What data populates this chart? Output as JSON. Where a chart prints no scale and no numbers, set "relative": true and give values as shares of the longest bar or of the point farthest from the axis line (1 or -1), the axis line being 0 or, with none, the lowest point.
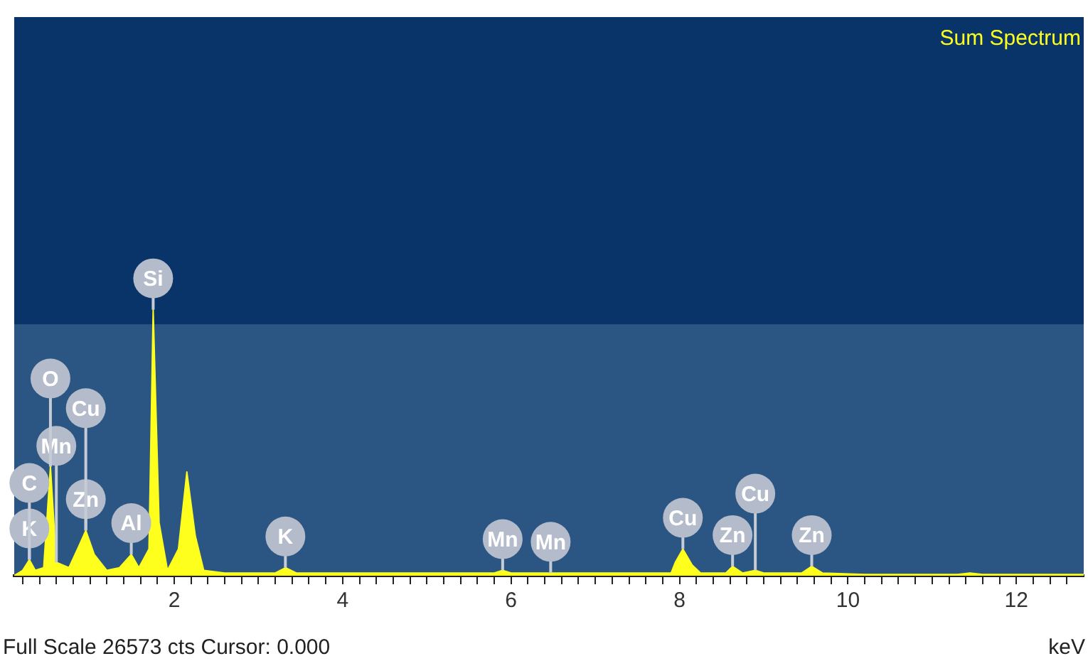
{
  "chart_data": {
    "type": "area",
    "title": "Sum Spectrum",
    "xlabel": "keV",
    "relative": true,
    "color": "#ffff1e",
    "grid": false,
    "legend": false,
    "tick_labels": "x",
    "x": [
      0.1,
      0.2,
      0.28,
      0.35,
      0.45,
      0.53,
      0.6,
      0.75,
      0.88,
      0.95,
      1.05,
      1.2,
      1.35,
      1.49,
      1.58,
      1.7,
      1.75,
      1.82,
      1.92,
      2.05,
      2.15,
      2.25,
      2.35,
      2.6,
      3.2,
      3.32,
      3.45,
      5.8,
      5.9,
      6.0,
      6.47,
      7.9,
      7.95,
      8.04,
      8.15,
      8.25,
      8.55,
      8.63,
      8.75,
      8.9,
      9.0,
      9.45,
      9.57,
      9.7,
      10.2,
      11.3,
      11.45,
      11.6,
      12.8
    ],
    "values": [
      0,
      0.02,
      0.06,
      0.02,
      0.03,
      0.41,
      0.05,
      0.03,
      0.12,
      0.17,
      0.08,
      0.02,
      0.03,
      0.08,
      0.03,
      0.1,
      1,
      0.2,
      0.02,
      0.1,
      0.39,
      0.15,
      0.02,
      0.01,
      0.01,
      0.03,
      0.01,
      0.01,
      0.02,
      0.01,
      0.01,
      0.01,
      0.05,
      0.1,
      0.04,
      0.01,
      0.01,
      0.035,
      0.01,
      0.02,
      0.01,
      0.01,
      0.035,
      0.01,
      0.005,
      0.005,
      0.01,
      0.005,
      0.005
    ],
    "xlim": [
      0.1,
      12.8
    ],
    "xticks": [
      {
        "value": 0.2,
        "label": null
      },
      {
        "value": 0.4,
        "label": null
      },
      {
        "value": 0.6,
        "label": null
      },
      {
        "value": 0.8,
        "label": null
      },
      {
        "value": 1,
        "label": null
      },
      {
        "value": 1.2,
        "label": null
      },
      {
        "value": 1.4,
        "label": null
      },
      {
        "value": 1.6,
        "label": null
      },
      {
        "value": 1.8,
        "label": null
      },
      2,
      {
        "value": 2.2,
        "label": null
      },
      {
        "value": 2.4,
        "label": null
      },
      {
        "value": 2.6,
        "label": null
      },
      {
        "value": 2.8,
        "label": null
      },
      {
        "value": 3,
        "label": null
      },
      {
        "value": 3.2,
        "label": null
      },
      {
        "value": 3.4,
        "label": null
      },
      {
        "value": 3.6,
        "label": null
      },
      {
        "value": 3.8,
        "label": null
      },
      4,
      {
        "value": 4.2,
        "label": null
      },
      {
        "value": 4.4,
        "label": null
      },
      {
        "value": 4.6,
        "label": null
      },
      {
        "value": 4.8,
        "label": null
      },
      {
        "value": 5,
        "label": null
      },
      {
        "value": 5.2,
        "label": null
      },
      {
        "value": 5.4,
        "label": null
      },
      {
        "value": 5.6,
        "label": null
      },
      {
        "value": 5.8,
        "label": null
      },
      6,
      {
        "value": 6.2,
        "label": null
      },
      {
        "value": 6.4,
        "label": null
      },
      {
        "value": 6.6,
        "label": null
      },
      {
        "value": 6.8,
        "label": null
      },
      {
        "value": 7,
        "label": null
      },
      {
        "value": 7.2,
        "label": null
      },
      {
        "value": 7.4,
        "label": null
      },
      {
        "value": 7.6,
        "label": null
      },
      {
        "value": 7.8,
        "label": null
      },
      8,
      {
        "value": 8.2,
        "label": null
      },
      {
        "value": 8.4,
        "label": null
      },
      {
        "value": 8.6,
        "label": null
      },
      {
        "value": 8.8,
        "label": null
      },
      {
        "value": 9,
        "label": null
      },
      {
        "value": 9.2,
        "label": null
      },
      {
        "value": 9.4,
        "label": null
      },
      {
        "value": 9.6,
        "label": null
      },
      {
        "value": 9.8,
        "label": null
      },
      10,
      {
        "value": 10.2,
        "label": null
      },
      {
        "value": 10.4,
        "label": null
      },
      {
        "value": 10.6,
        "label": null
      },
      {
        "value": 10.8,
        "label": null
      },
      {
        "value": 11,
        "label": null
      },
      {
        "value": 11.2,
        "label": null
      },
      {
        "value": 11.4,
        "label": null
      },
      {
        "value": 11.6,
        "label": null
      },
      {
        "value": 11.8,
        "label": null
      },
      12,
      {
        "value": 12.2,
        "label": null
      },
      {
        "value": 12.4,
        "label": null
      },
      {
        "value": 12.6,
        "label": null
      }
    ],
    "annotations": [
      {
        "text": "K",
        "x": 0.28,
        "y": 0.06
      },
      {
        "text": "C",
        "x": 0.28,
        "y": 0.06
      },
      {
        "text": "Zn",
        "x": 0.95,
        "y": 0.17
      },
      {
        "text": "Mn",
        "x": 0.6,
        "y": 0.05
      },
      {
        "text": "Cu",
        "x": 0.95,
        "y": 0.17
      },
      {
        "text": "O",
        "x": 0.53,
        "y": 0.41
      },
      {
        "text": "Al",
        "x": 1.49,
        "y": 0.08
      },
      {
        "text": "Si",
        "x": 1.75,
        "y": 1
      },
      {
        "text": "K",
        "x": 3.32,
        "y": 0.03
      },
      {
        "text": "Mn",
        "x": 5.9,
        "y": 0.02
      },
      {
        "text": "Mn",
        "x": 6.47,
        "y": 0.01
      },
      {
        "text": "Cu",
        "x": 8.04,
        "y": 0.1
      },
      {
        "text": "Zn",
        "x": 8.63,
        "y": 0.035
      },
      {
        "text": "Cu",
        "x": 8.9,
        "y": 0.02
      },
      {
        "text": "Zn",
        "x": 9.57,
        "y": 0.035
      },
      "Full Scale 26573 cts Cursor: 0.000"
    ]
  }
}
